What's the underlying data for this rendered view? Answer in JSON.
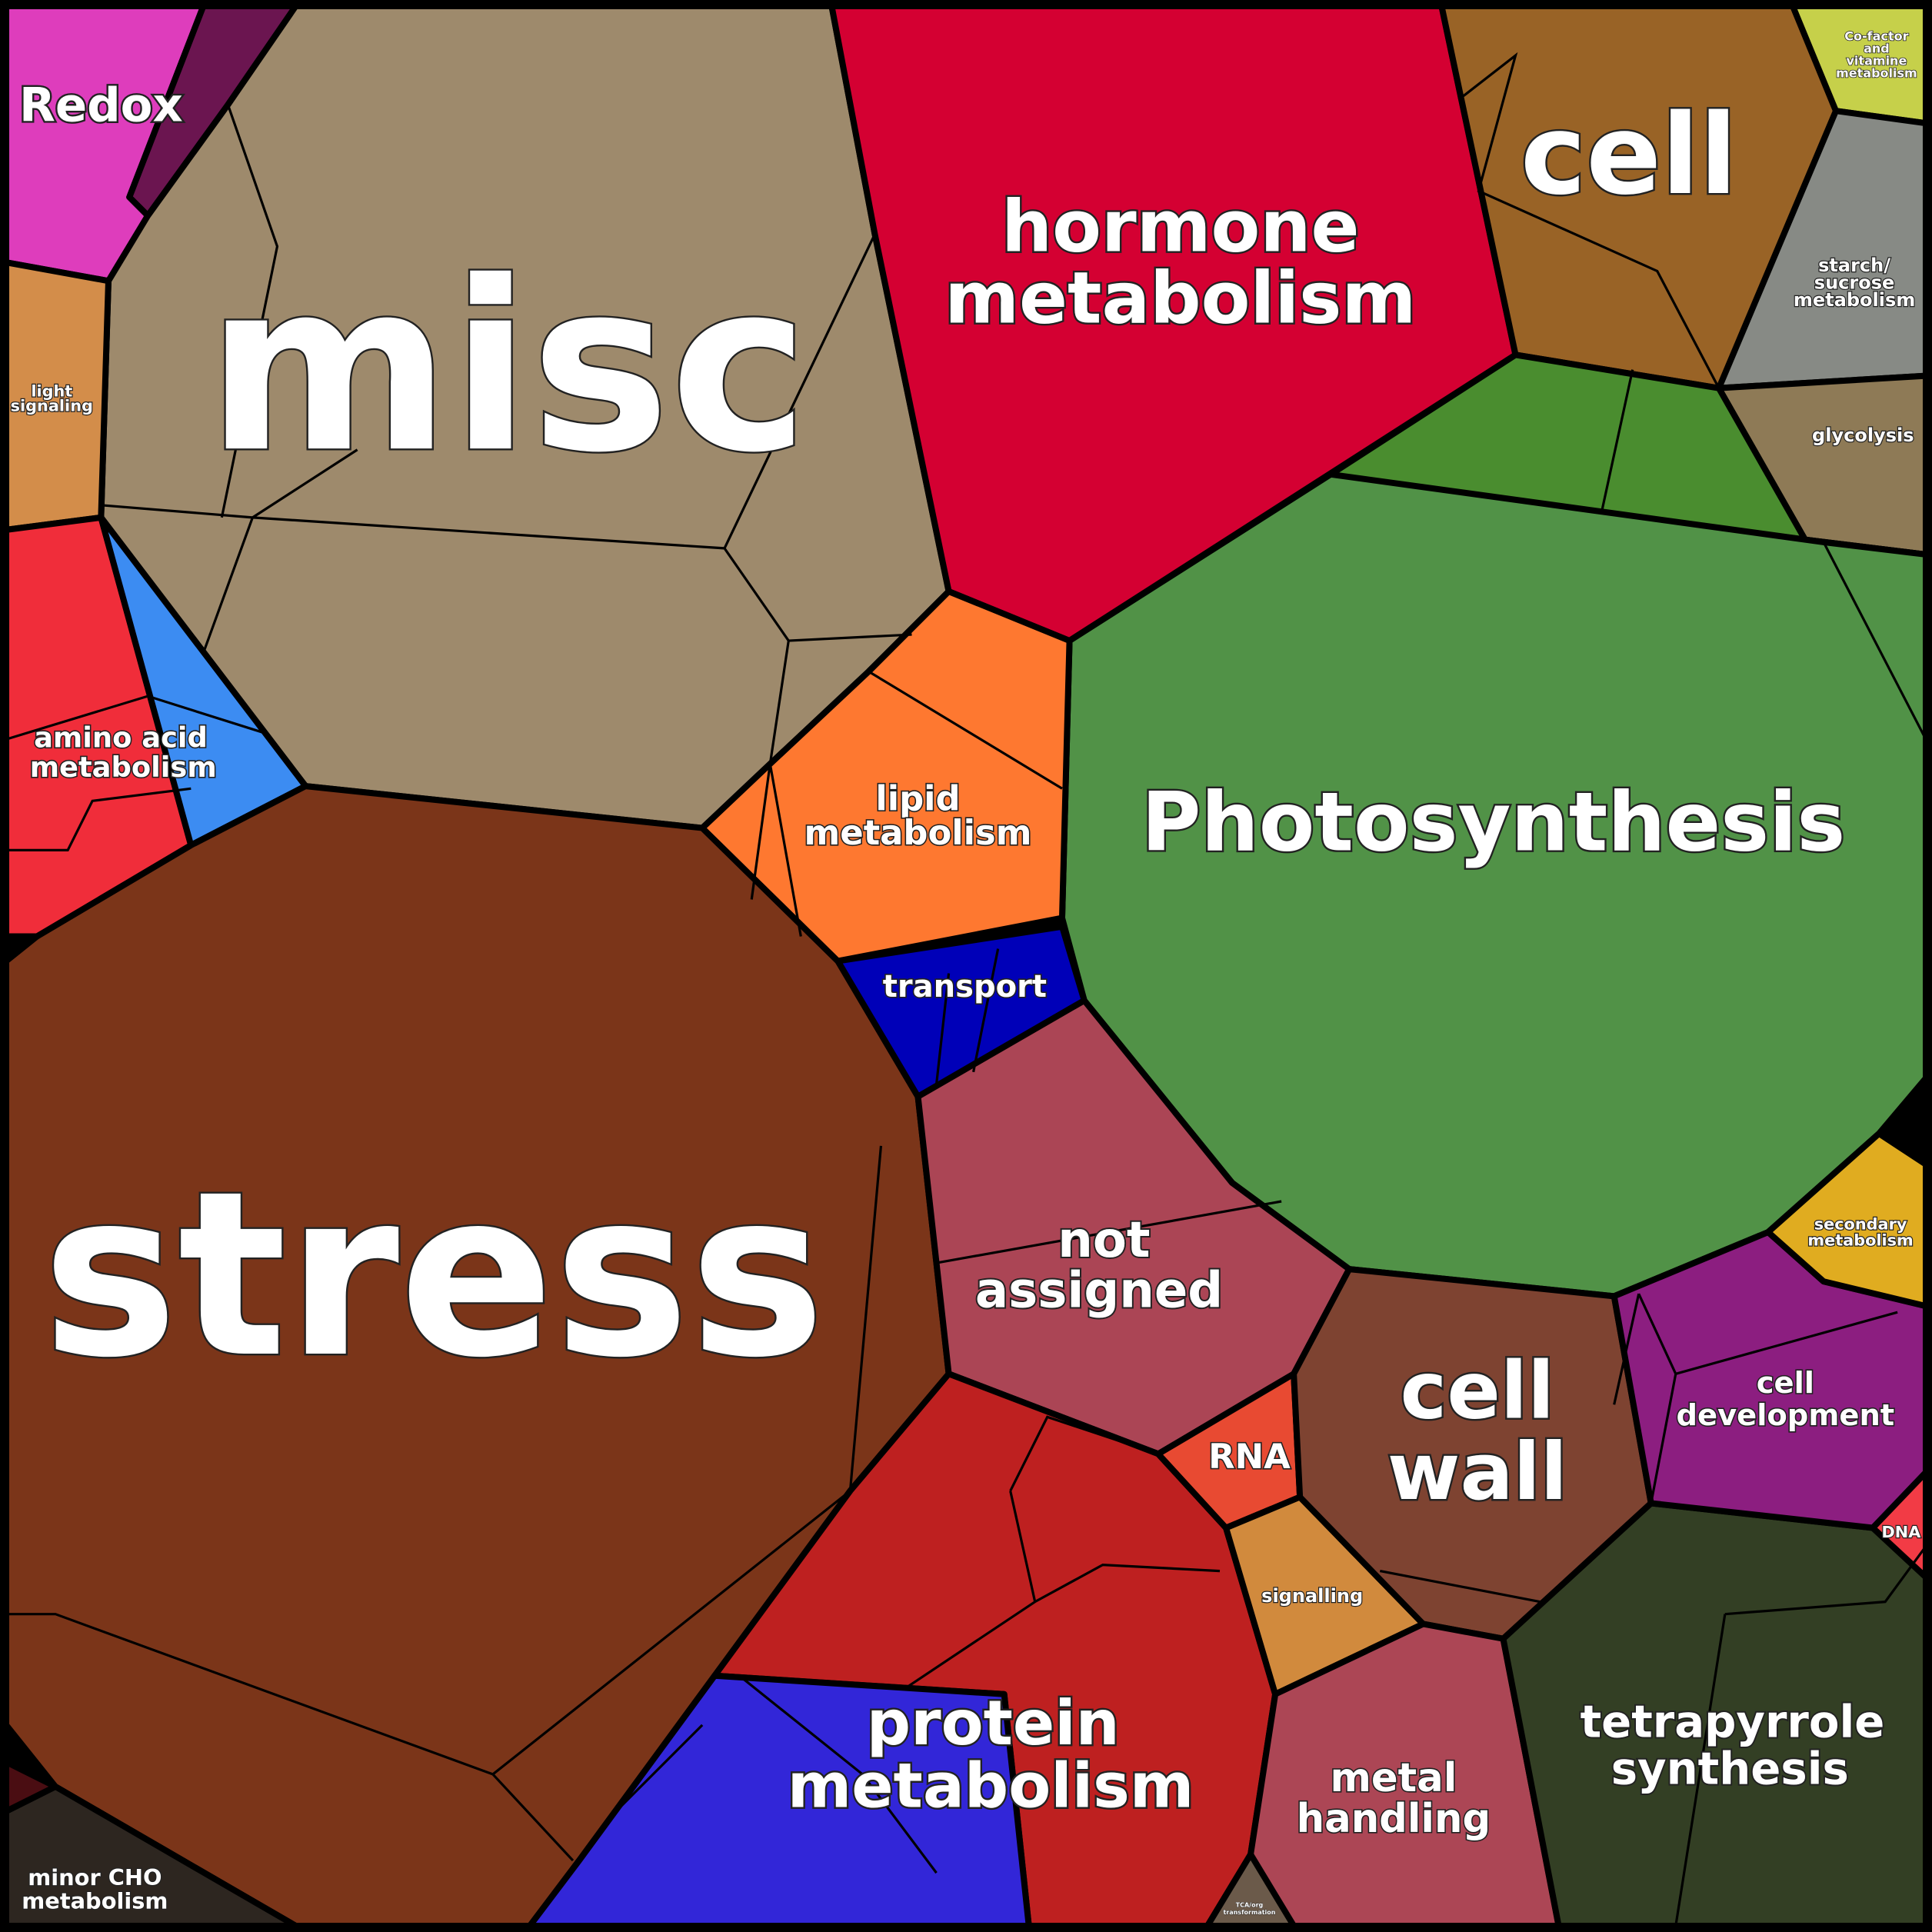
{
  "cells": [
    {
      "lines": [
        "Redox"
      ]
    },
    {
      "lines": [
        "misc"
      ]
    },
    {
      "lines": [
        "hormone",
        "metabolism"
      ]
    },
    {
      "lines": [
        "cell"
      ]
    },
    {
      "lines": [
        "Co-factor",
        "and",
        "vitamine",
        "metabolism"
      ]
    },
    {
      "lines": [
        "starch/",
        "sucrose",
        "metabolism"
      ]
    },
    {
      "lines": [
        "glycolysis"
      ]
    },
    {
      "lines": [
        "light",
        "signaling"
      ]
    },
    {
      "lines": [
        "amino acid",
        "metabolism"
      ]
    },
    {
      "lines": [
        "lipid",
        "metabolism"
      ]
    },
    {
      "lines": [
        "Photosynthesis"
      ]
    },
    {
      "lines": [
        "transport"
      ]
    },
    {
      "lines": [
        "stress"
      ]
    },
    {
      "lines": [
        "not",
        "assigned"
      ]
    },
    {
      "lines": [
        "secondary",
        "metabolism"
      ]
    },
    {
      "lines": [
        "cell",
        "wall"
      ]
    },
    {
      "lines": [
        "cell",
        "development"
      ]
    },
    {
      "lines": [
        "RNA"
      ]
    },
    {
      "lines": [
        "DNA"
      ]
    },
    {
      "lines": [
        "signalling"
      ]
    },
    {
      "lines": [
        "protein",
        "metabolism"
      ]
    },
    {
      "lines": [
        "metal",
        "handling"
      ]
    },
    {
      "lines": [
        "tetrapyrrole",
        "synthesis"
      ]
    },
    {
      "lines": [
        "minor CHO",
        "metabolism"
      ]
    },
    {
      "lines": [
        "TCA/org",
        "transformation"
      ]
    }
  ]
}
